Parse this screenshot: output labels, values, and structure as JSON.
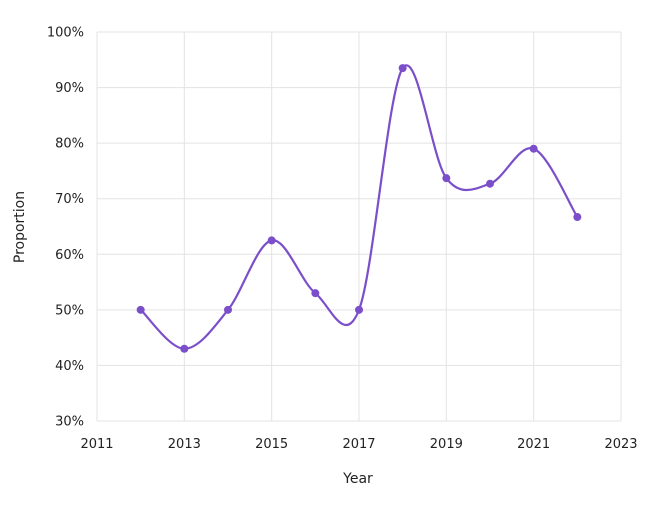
{
  "chart_data": {
    "type": "line",
    "smooth": true,
    "xlabel": "Year",
    "ylabel": "Proportion",
    "xlim": [
      2011,
      2023
    ],
    "ylim": [
      0.3,
      1.0
    ],
    "x_ticks": [
      2011,
      2013,
      2015,
      2017,
      2019,
      2021,
      2023
    ],
    "x_tick_labels": [
      "2011",
      "2013",
      "2015",
      "2017",
      "2019",
      "2021",
      "2023"
    ],
    "y_ticks": [
      0.3,
      0.4,
      0.5,
      0.6,
      0.7,
      0.8,
      0.9,
      1.0
    ],
    "y_tick_labels": [
      "30%",
      "40%",
      "50%",
      "60%",
      "70%",
      "80%",
      "90%",
      "100%"
    ],
    "grid": true,
    "legend": "none",
    "series": [
      {
        "color": "#7b4fc9",
        "x": [
          2012,
          2013,
          2014,
          2015,
          2016,
          2017,
          2018,
          2019,
          2020,
          2021,
          2022
        ],
        "y": [
          0.5,
          0.43,
          0.5,
          0.625,
          0.53,
          0.5,
          0.935,
          0.737,
          0.727,
          0.79,
          0.667
        ]
      }
    ]
  }
}
